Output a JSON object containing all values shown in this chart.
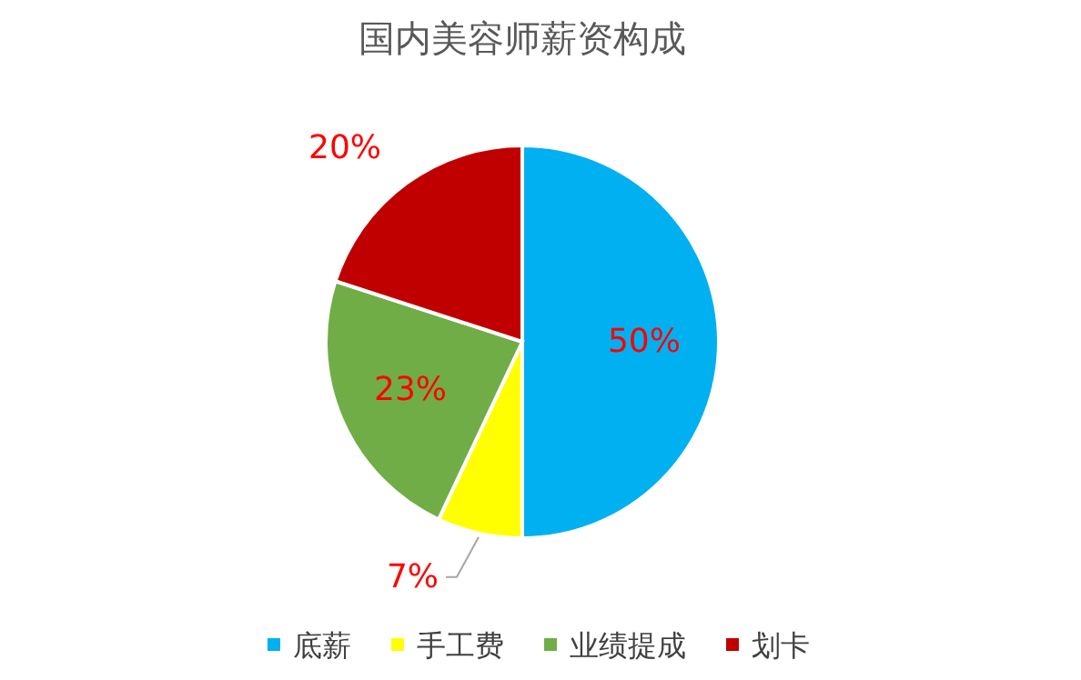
{
  "chart_data": {
    "type": "pie",
    "title": "国内美容师薪资构成",
    "categories": [
      "底薪",
      "手工费",
      "业绩提成",
      "划卡"
    ],
    "values": [
      50,
      7,
      23,
      20
    ],
    "value_labels": [
      "50%",
      "7%",
      "23%",
      "20%"
    ],
    "colors": [
      "#00b0f0",
      "#ffff00",
      "#70ad47",
      "#c00000"
    ],
    "legend": "bottom"
  }
}
